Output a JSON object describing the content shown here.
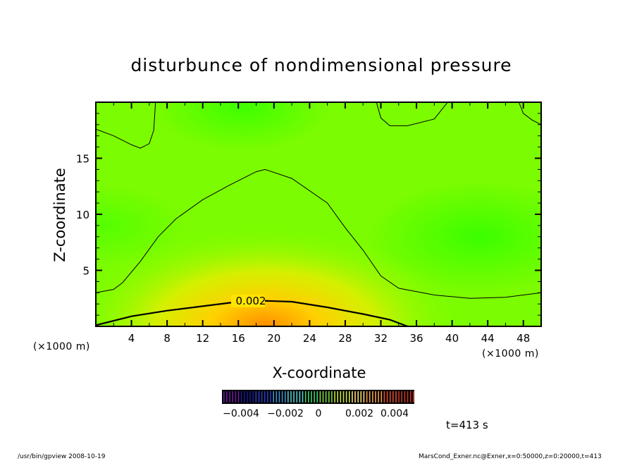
{
  "chart_data": {
    "type": "heatmap",
    "title": "disturbunce of nondimensional pressure",
    "xlabel": "X-coordinate",
    "ylabel": "Z-coordinate",
    "x_unit_label": "(×1000 m)",
    "x_unit_label_right": "(×1000 m)",
    "xlim": [
      0,
      50
    ],
    "ylim": [
      0,
      20
    ],
    "xticks": [
      4,
      8,
      12,
      16,
      20,
      24,
      28,
      32,
      36,
      40,
      44,
      48
    ],
    "yticks": [
      5,
      10,
      15
    ],
    "x_minor_step": 2,
    "y_minor_step": 1,
    "contour_label": "0.002",
    "contours": [
      {
        "level": 0.002,
        "bold": true,
        "points": [
          [
            0,
            0.1
          ],
          [
            4,
            0.9
          ],
          [
            8,
            1.4
          ],
          [
            12,
            1.8
          ],
          [
            15,
            2.1
          ],
          [
            18,
            2.3
          ],
          [
            22,
            2.2
          ],
          [
            26,
            1.7
          ],
          [
            30,
            1.1
          ],
          [
            33,
            0.6
          ],
          [
            35,
            0.0
          ]
        ]
      },
      {
        "level": 0.001,
        "bold": false,
        "points": [
          [
            0,
            3.0
          ],
          [
            2,
            3.3
          ],
          [
            3,
            3.9
          ],
          [
            5,
            5.8
          ],
          [
            7,
            8.0
          ],
          [
            9,
            9.6
          ],
          [
            12,
            11.3
          ],
          [
            15,
            12.6
          ],
          [
            18,
            13.8
          ],
          [
            19,
            14.0
          ],
          [
            22,
            13.2
          ],
          [
            26,
            11.0
          ],
          [
            28,
            8.8
          ],
          [
            30,
            6.8
          ],
          [
            32,
            4.5
          ],
          [
            34,
            3.4
          ],
          [
            38,
            2.8
          ],
          [
            42,
            2.5
          ],
          [
            46,
            2.6
          ],
          [
            50,
            3.0
          ]
        ]
      },
      {
        "level": 0.001,
        "bold": false,
        "points": [
          [
            0,
            17.6
          ],
          [
            2,
            17.0
          ],
          [
            4,
            16.2
          ],
          [
            5,
            15.9
          ],
          [
            6,
            16.3
          ],
          [
            6.5,
            17.5
          ],
          [
            6.7,
            20.0
          ]
        ]
      },
      {
        "level": 0.001,
        "bold": false,
        "points": [
          [
            31.5,
            20.0
          ],
          [
            32,
            18.6
          ],
          [
            33,
            17.9
          ],
          [
            35,
            17.9
          ],
          [
            38,
            18.5
          ],
          [
            39.5,
            20.0
          ]
        ]
      },
      {
        "level": 0.001,
        "bold": false,
        "points": [
          [
            47.5,
            20.0
          ],
          [
            48,
            19.0
          ],
          [
            49,
            18.4
          ],
          [
            50,
            18.0
          ]
        ]
      }
    ],
    "colorbar": {
      "ticks": [
        "−0.004",
        "−0.002",
        "0",
        "0.002",
        "0.004"
      ],
      "range": [
        -0.005,
        0.005
      ],
      "colors": [
        "#6a1b9a",
        "#1a1a8c",
        "#2a3cbf",
        "#3f8fd0",
        "#55d0d0",
        "#3cd26e",
        "#7adc3c",
        "#c8e640",
        "#ffe070",
        "#f0a050",
        "#e05030",
        "#c83828"
      ]
    },
    "field_colors": {
      "strong_positive": "#ff8c00",
      "positive": "#ffd000",
      "weak_positive": "#d4f000",
      "near_zero": "#80ff00",
      "slight_negative": "#33ff00"
    }
  },
  "annotations": {
    "time": "t=413 s",
    "footer_left": "/usr/bin/gpview   2008-10-19",
    "footer_right": "MarsCond_Exner.nc@Exner,x=0:50000,z=0:20000,t=413"
  }
}
